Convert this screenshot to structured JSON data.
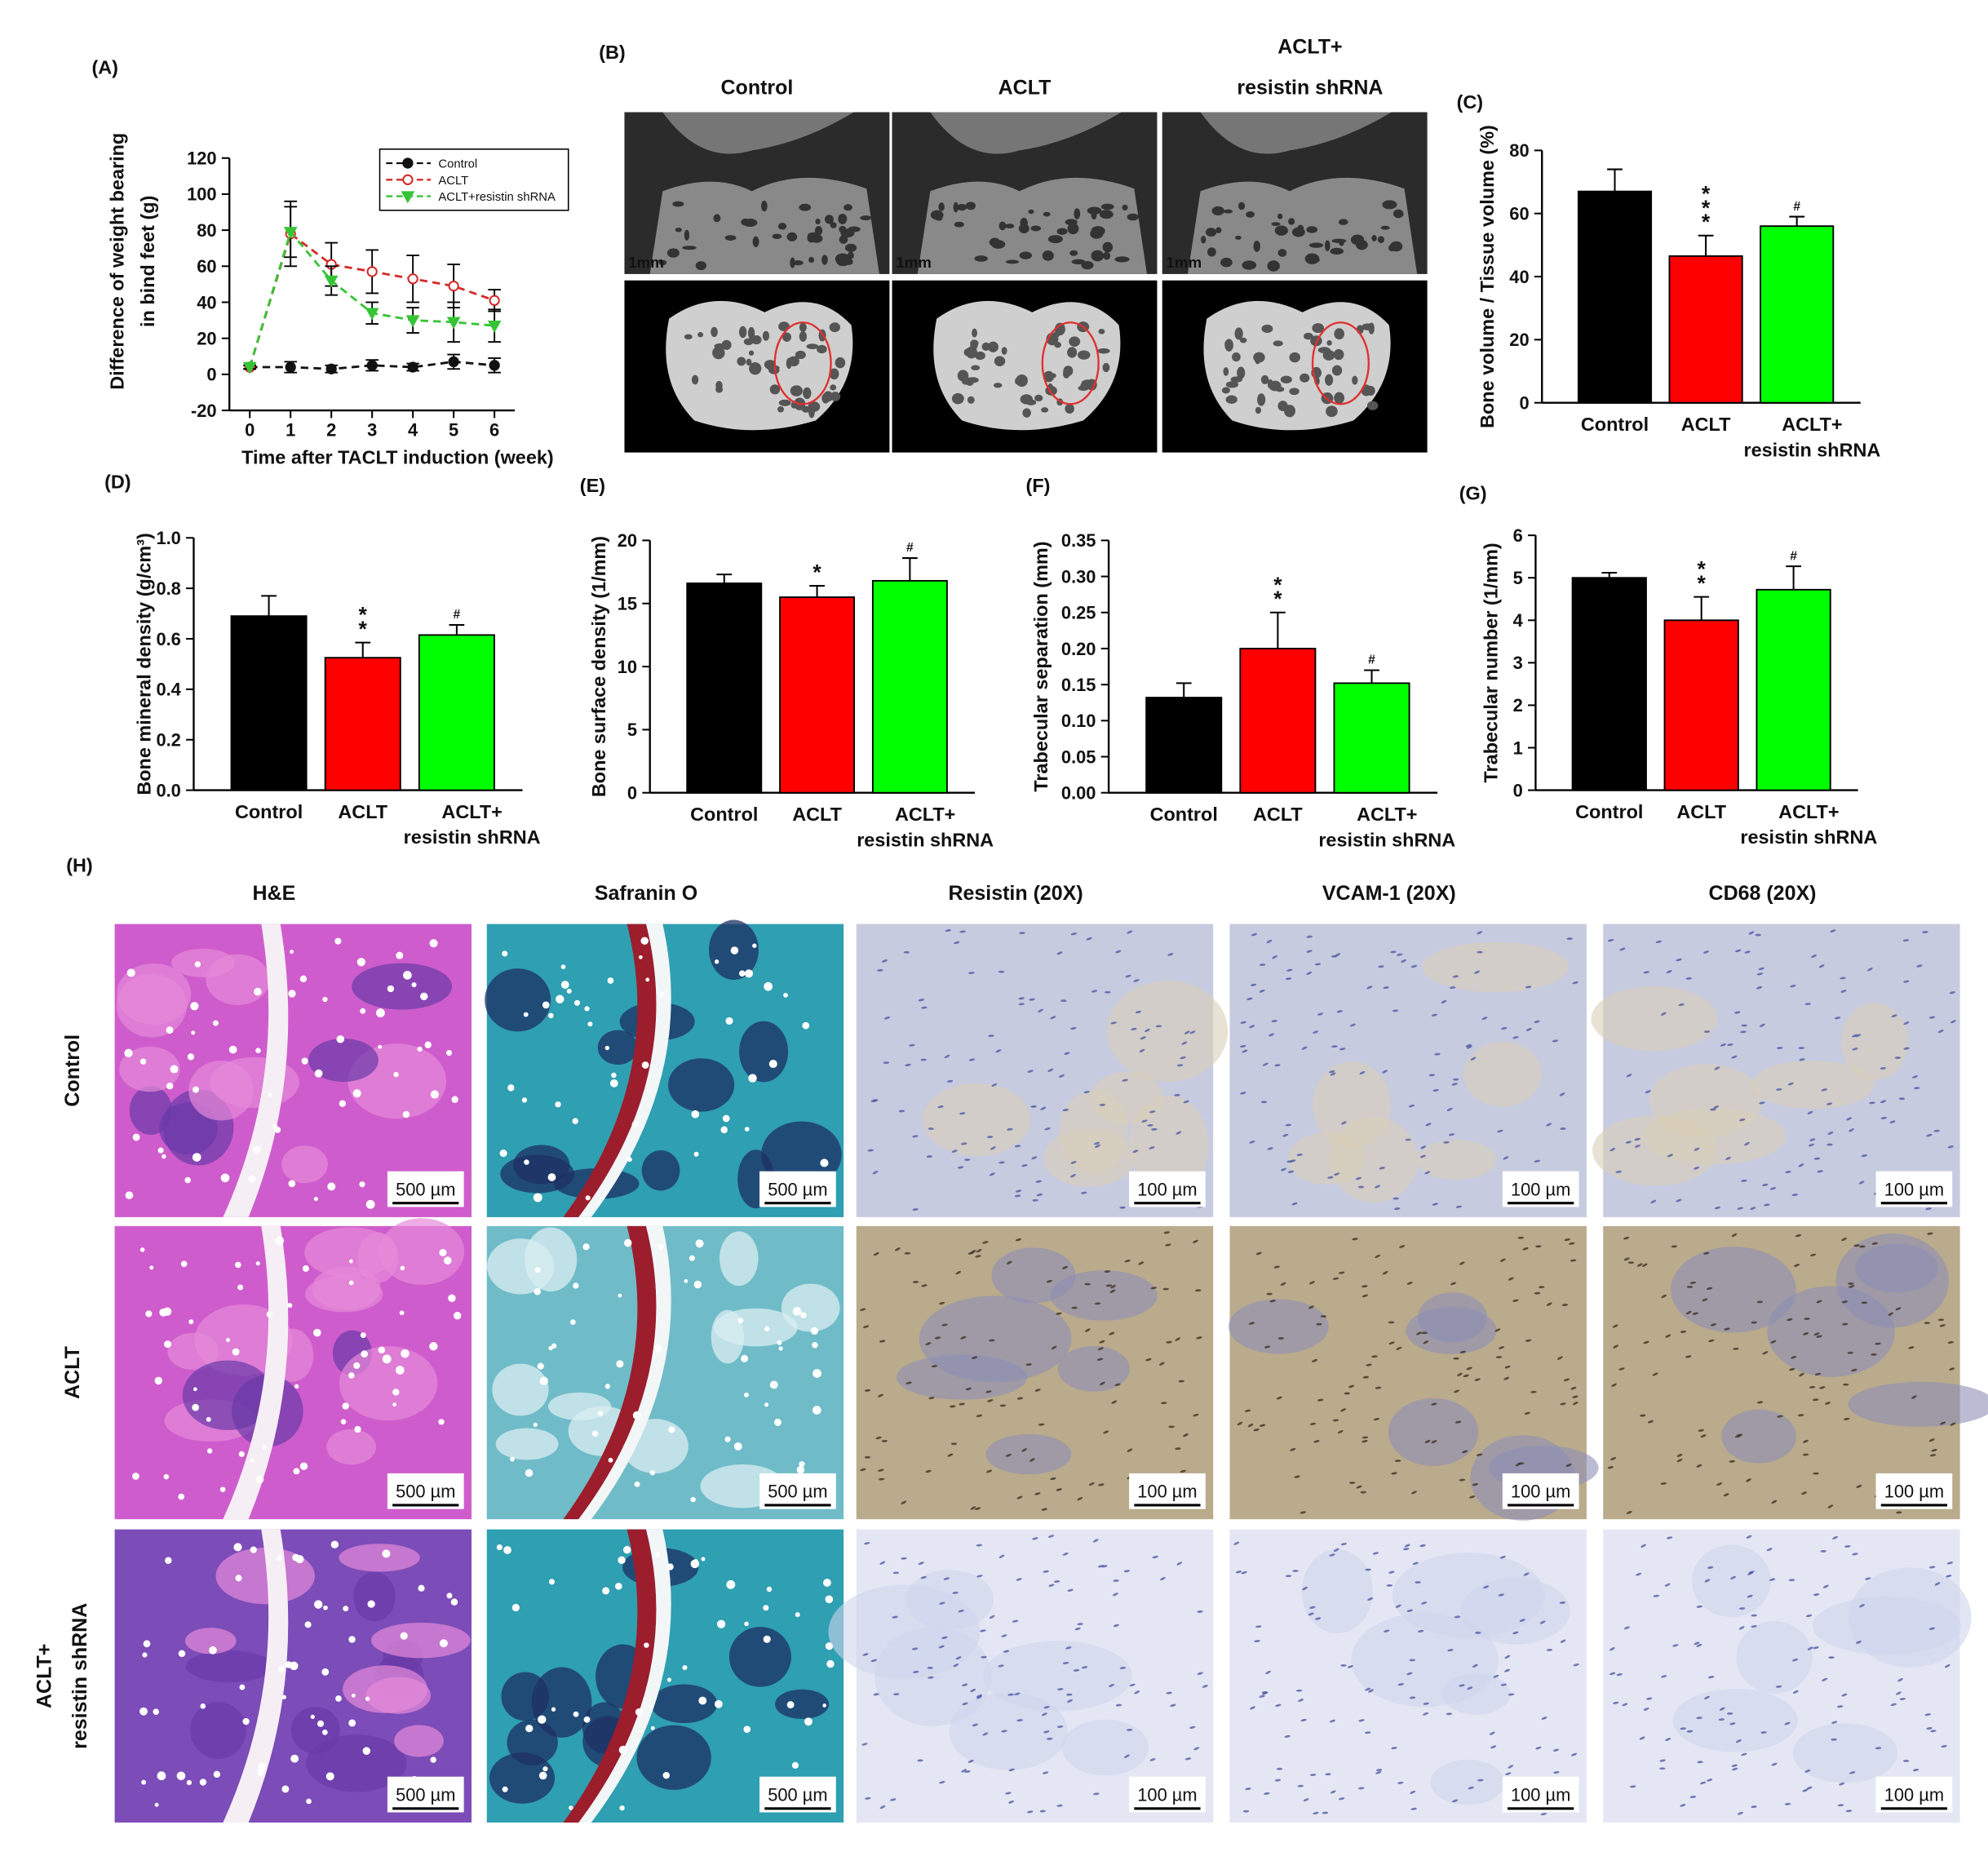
{
  "chart_data": [
    {
      "type": "line",
      "panel_label": "(A)",
      "ylabel": "Difference of weight bearing\nin bind feet (g)",
      "xlabel": "Time after TACLT induction (week)",
      "x": [
        0,
        1,
        2,
        3,
        4,
        5,
        6
      ],
      "xlim": [
        -0.5,
        6.5
      ],
      "xticks": [
        0,
        1,
        2,
        3,
        4,
        5,
        6
      ],
      "ylim": [
        -20,
        120
      ],
      "yticks": [
        -20,
        0,
        20,
        40,
        60,
        80,
        100,
        120
      ],
      "legend": "upper right",
      "series": [
        {
          "name": "Control",
          "color": "#111111",
          "marker": "circle",
          "values": [
            4,
            4,
            3,
            5,
            4,
            7,
            5
          ],
          "errors": [
            1,
            3,
            2,
            3,
            2,
            4,
            4
          ]
        },
        {
          "name": "ACLT",
          "color": "#d42a2a",
          "marker": "open circle",
          "values": [
            4,
            78,
            61,
            57,
            53,
            49,
            41
          ],
          "errors": [
            1,
            18,
            12,
            12,
            13,
            12,
            6
          ]
        },
        {
          "name": "ACLT+resistin shRNA",
          "color": "#35c435",
          "marker": "triangle-down",
          "values": [
            4,
            79,
            52,
            34,
            30,
            29,
            27
          ],
          "errors": [
            1,
            14,
            8,
            6,
            7,
            11,
            9
          ]
        }
      ]
    },
    {
      "type": "bar",
      "panel_label": "(C)",
      "ylabel": "Bone volume / Tissue volume (%)",
      "categories": [
        "Control",
        "ACLT",
        "ACLT+\nresistin shRNA"
      ],
      "colors": [
        "#000000",
        "#ff0000",
        "#00ff00"
      ],
      "values": [
        67,
        46.5,
        56
      ],
      "errors": [
        7,
        6.5,
        3
      ],
      "significance": [
        null,
        "*\n*\n*",
        "#"
      ],
      "ylim": [
        0,
        80
      ],
      "yticks": [
        0,
        20,
        40,
        60,
        80
      ]
    },
    {
      "type": "bar",
      "panel_label": "(D)",
      "ylabel": "Bone mineral density (g/cm³)",
      "categories": [
        "Control",
        "ACLT",
        "ACLT+\nresistin shRNA"
      ],
      "colors": [
        "#000000",
        "#ff0000",
        "#00ff00"
      ],
      "values": [
        0.69,
        0.525,
        0.615
      ],
      "errors": [
        0.08,
        0.06,
        0.04
      ],
      "significance": [
        null,
        "*\n*",
        "#"
      ],
      "ylim": [
        0,
        1
      ],
      "yticks": [
        {
          "value": 0,
          "label": "0.0"
        },
        0.2,
        0.4,
        0.6,
        0.8,
        {
          "value": 1,
          "label": "1.0"
        }
      ]
    },
    {
      "type": "bar",
      "panel_label": "(E)",
      "ylabel": "Bone surface density (1/mm)",
      "categories": [
        "Control",
        "ACLT",
        "ACLT+\nresistin shRNA"
      ],
      "colors": [
        "#000000",
        "#ff0000",
        "#00ff00"
      ],
      "values": [
        16.6,
        15.5,
        16.8
      ],
      "errors": [
        0.7,
        0.9,
        1.8
      ],
      "significance": [
        null,
        "*",
        "#"
      ],
      "ylim": [
        0,
        20
      ],
      "yticks": [
        0,
        5,
        10,
        15,
        20
      ]
    },
    {
      "type": "bar",
      "panel_label": "(F)",
      "ylabel": "Trabecular separation (mm)",
      "categories": [
        "Control",
        "ACLT",
        "ACLT+\nresistin shRNA"
      ],
      "colors": [
        "#000000",
        "#ff0000",
        "#00ff00"
      ],
      "values": [
        0.132,
        0.2,
        0.152
      ],
      "errors": [
        0.02,
        0.05,
        0.018
      ],
      "significance": [
        null,
        "*\n*",
        "#"
      ],
      "ylim": [
        0,
        0.35
      ],
      "yticks": [
        {
          "value": 0,
          "label": "0.00"
        },
        0.05,
        {
          "value": 0.1,
          "label": "0.10"
        },
        0.15,
        {
          "value": 0.2,
          "label": "0.20"
        },
        0.25,
        {
          "value": 0.3,
          "label": "0.30"
        },
        0.35
      ]
    },
    {
      "type": "bar",
      "panel_label": "(G)",
      "ylabel": "Trabecular number (1/mm)",
      "categories": [
        "Control",
        "ACLT",
        "ACLT+\nresistin shRNA"
      ],
      "colors": [
        "#000000",
        "#ff0000",
        "#00ff00"
      ],
      "values": [
        5.0,
        4.0,
        4.72
      ],
      "errors": [
        0.12,
        0.55,
        0.55
      ],
      "significance": [
        null,
        "*\n*",
        "#"
      ],
      "ylim": [
        0,
        6
      ],
      "yticks": [
        0,
        1,
        2,
        3,
        4,
        5,
        6
      ]
    }
  ],
  "panel_b": {
    "label": "(B)",
    "columns": [
      "Control",
      "ACLT",
      "ACLT+\nresistin shRNA"
    ],
    "scale_labels": [
      "1mm",
      "1mm",
      "1mm"
    ]
  },
  "panel_h": {
    "label": "(H)",
    "columns": [
      "H&E",
      "Safranin O",
      "Resistin (20X)",
      "VCAM-1 (20X)",
      "CD68 (20X)"
    ],
    "rows": [
      {
        "label": "Control",
        "scale_bars": [
          "500 µm",
          "500 µm",
          "100 µm",
          "100 µm",
          "100 µm"
        ]
      },
      {
        "label": "ACLT",
        "scale_bars": [
          "500 µm",
          "500 µm",
          "100 µm",
          "100 µm",
          "100 µm"
        ]
      },
      {
        "label": "ACLT+\nresistin shRNA",
        "scale_bars": [
          "500 µm",
          "500 µm",
          "100 µm",
          "100 µm",
          "100 µm"
        ]
      }
    ]
  }
}
